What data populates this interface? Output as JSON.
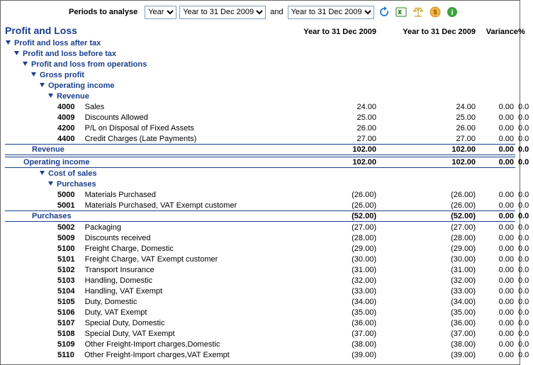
{
  "toolbar": {
    "label": "Periods to analyse",
    "period_type": "Year",
    "period_a": "Year to 31 Dec 2009",
    "and": "and",
    "period_b": "Year to 31 Dec 2009"
  },
  "headers": {
    "title": "Profit and Loss",
    "col1": "Year to 31 Dec 2009",
    "col2": "Year to 31 Dec 2009",
    "variance": "Variance",
    "pct": "%"
  },
  "sections": [
    {
      "type": "heading",
      "indent": 0,
      "expandable": true,
      "label": "Profit and loss after tax"
    },
    {
      "type": "heading",
      "indent": 1,
      "expandable": true,
      "label": "Profit and loss before tax"
    },
    {
      "type": "heading",
      "indent": 2,
      "expandable": true,
      "label": "Profit and loss from operations"
    },
    {
      "type": "heading",
      "indent": 3,
      "expandable": true,
      "label": "Gross profit"
    },
    {
      "type": "heading",
      "indent": 4,
      "expandable": true,
      "label": "Operating income"
    },
    {
      "type": "heading",
      "indent": 5,
      "expandable": true,
      "label": "Revenue"
    },
    {
      "type": "account",
      "indent": 6,
      "code": "4000",
      "name": "Sales",
      "v1": "24.00",
      "v2": "24.00",
      "var": "0.00",
      "pct": "0.0"
    },
    {
      "type": "account",
      "indent": 6,
      "code": "4009",
      "name": "Discounts Allowed",
      "v1": "25.00",
      "v2": "25.00",
      "var": "0.00",
      "pct": "0.0"
    },
    {
      "type": "account",
      "indent": 6,
      "code": "4200",
      "name": "P/L on Disposal of Fixed Assets",
      "v1": "26.00",
      "v2": "26.00",
      "var": "0.00",
      "pct": "0.0"
    },
    {
      "type": "account",
      "indent": 6,
      "code": "4400",
      "name": "Credit Charges (Late Payments)",
      "v1": "27.00",
      "v2": "27.00",
      "var": "0.00",
      "pct": "0.0"
    },
    {
      "type": "total",
      "indent": "5t",
      "label": "Revenue",
      "v1": "102.00",
      "v2": "102.00",
      "var": "0.00",
      "pct": "0.0"
    },
    {
      "type": "gap"
    },
    {
      "type": "total",
      "indent": "4t",
      "label": "Operating income",
      "v1": "102.00",
      "v2": "102.00",
      "var": "0.00",
      "pct": "0.0"
    },
    {
      "type": "heading",
      "indent": 4,
      "expandable": true,
      "label": "Cost of sales"
    },
    {
      "type": "heading",
      "indent": 5,
      "expandable": true,
      "label": "Purchases"
    },
    {
      "type": "account",
      "indent": 6,
      "code": "5000",
      "name": "Materials Purchased",
      "v1": "(26.00)",
      "v2": "(26.00)",
      "var": "0.00",
      "pct": "0.0"
    },
    {
      "type": "account",
      "indent": 6,
      "code": "5001",
      "name": "Materials Purchased, VAT Exempt customer",
      "v1": "(26.00)",
      "v2": "(26.00)",
      "var": "0.00",
      "pct": "0.0"
    },
    {
      "type": "total",
      "indent": "5t",
      "label": "Purchases",
      "v1": "(52.00)",
      "v2": "(52.00)",
      "var": "0.00",
      "pct": "0.0"
    },
    {
      "type": "account",
      "indent": 6,
      "code": "5002",
      "name": "Packaging",
      "v1": "(27.00)",
      "v2": "(27.00)",
      "var": "0.00",
      "pct": "0.0"
    },
    {
      "type": "account",
      "indent": 6,
      "code": "5009",
      "name": "Discounts received",
      "v1": "(28.00)",
      "v2": "(28.00)",
      "var": "0.00",
      "pct": "0.0"
    },
    {
      "type": "account",
      "indent": 6,
      "code": "5100",
      "name": "Freight Charge, Domestic",
      "v1": "(29.00)",
      "v2": "(29.00)",
      "var": "0.00",
      "pct": "0.0"
    },
    {
      "type": "account",
      "indent": 6,
      "code": "5101",
      "name": "Freight Charge, VAT Exempt customer",
      "v1": "(30.00)",
      "v2": "(30.00)",
      "var": "0.00",
      "pct": "0.0"
    },
    {
      "type": "account",
      "indent": 6,
      "code": "5102",
      "name": "Transport Insurance",
      "v1": "(31.00)",
      "v2": "(31.00)",
      "var": "0.00",
      "pct": "0.0"
    },
    {
      "type": "account",
      "indent": 6,
      "code": "5103",
      "name": "Handling, Domestic",
      "v1": "(32.00)",
      "v2": "(32.00)",
      "var": "0.00",
      "pct": "0.0"
    },
    {
      "type": "account",
      "indent": 6,
      "code": "5104",
      "name": "Handling, VAT Exempt",
      "v1": "(33.00)",
      "v2": "(33.00)",
      "var": "0.00",
      "pct": "0.0"
    },
    {
      "type": "account",
      "indent": 6,
      "code": "5105",
      "name": "Duty, Domestic",
      "v1": "(34.00)",
      "v2": "(34.00)",
      "var": "0.00",
      "pct": "0.0"
    },
    {
      "type": "account",
      "indent": 6,
      "code": "5106",
      "name": "Duty, VAT Exempt",
      "v1": "(35.00)",
      "v2": "(35.00)",
      "var": "0.00",
      "pct": "0.0"
    },
    {
      "type": "account",
      "indent": 6,
      "code": "5107",
      "name": "Special Duty, Domestic",
      "v1": "(36.00)",
      "v2": "(36.00)",
      "var": "0.00",
      "pct": "0.0"
    },
    {
      "type": "account",
      "indent": 6,
      "code": "5108",
      "name": "Special Duty, VAT Exempt",
      "v1": "(37.00)",
      "v2": "(37.00)",
      "var": "0.00",
      "pct": "0.0"
    },
    {
      "type": "account",
      "indent": 6,
      "code": "5109",
      "name": "Other Freight-Import charges,Domestic",
      "v1": "(38.00)",
      "v2": "(38.00)",
      "var": "0.00",
      "pct": "0.0"
    },
    {
      "type": "account",
      "indent": 6,
      "code": "5110",
      "name": "Other Freight-Import charges,VAT Exempt",
      "v1": "(39.00)",
      "v2": "(39.00)",
      "var": "0.00",
      "pct": "0.0"
    }
  ]
}
